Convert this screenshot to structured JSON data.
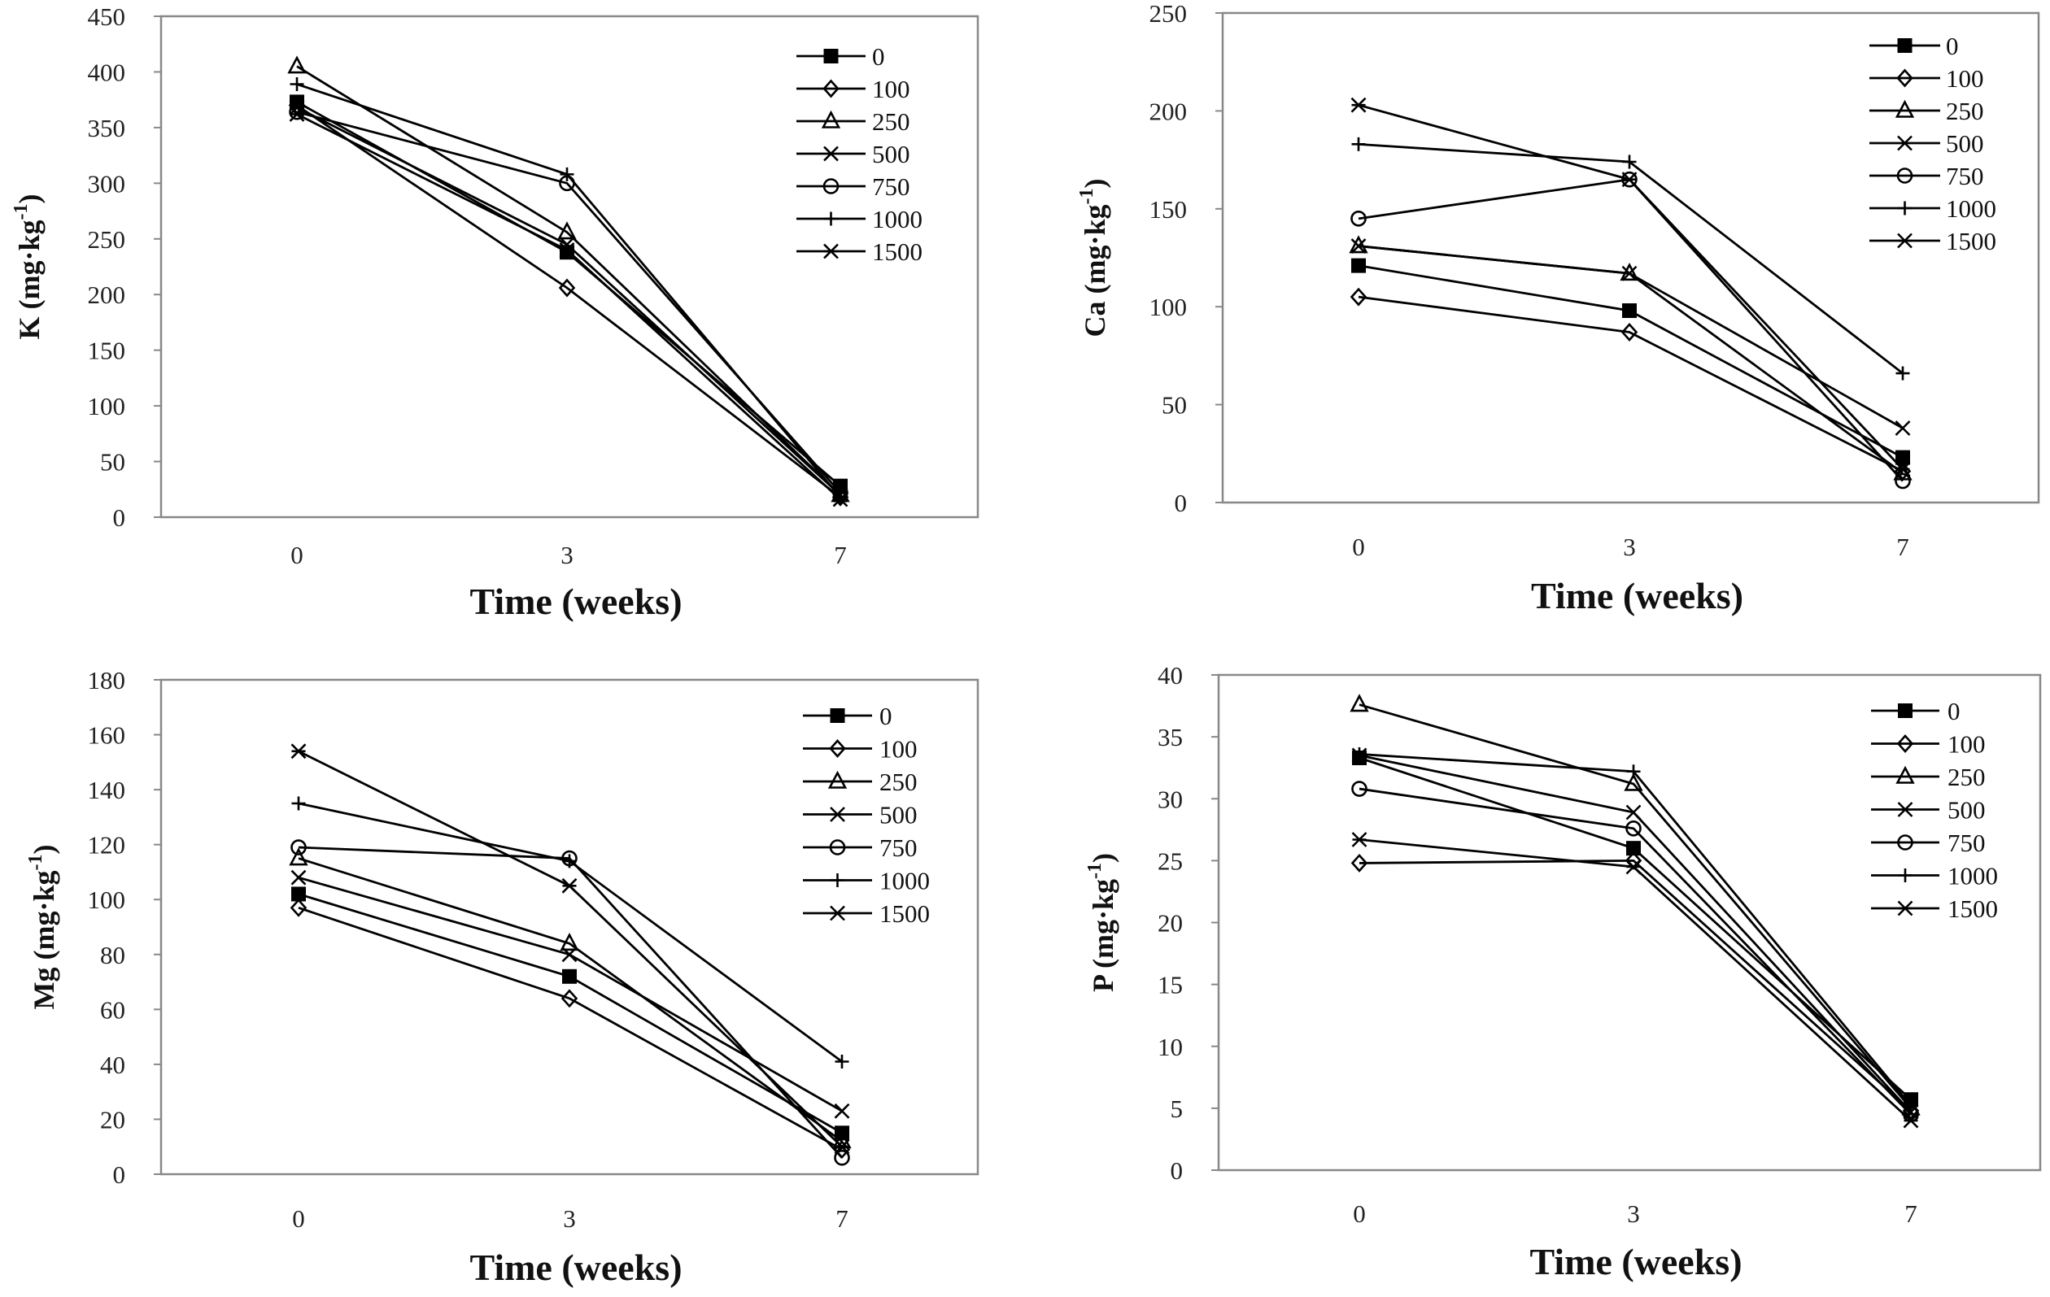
{
  "chart_data": [
    {
      "type": "line",
      "panel": "K",
      "ylabel_main": "K (mg·kg",
      "ylabel_sup": "-1",
      "ylabel_close": ")",
      "xlabel": "Time (weeks)",
      "x": [
        "0",
        "3",
        "7"
      ],
      "ylim": [
        0,
        450
      ],
      "yticks": [
        0,
        50,
        100,
        150,
        200,
        250,
        300,
        350,
        400,
        450
      ],
      "series": [
        {
          "name": "0",
          "marker": "square",
          "values": [
            373,
            238,
            28
          ]
        },
        {
          "name": "100",
          "marker": "diamond",
          "values": [
            370,
            206,
            18
          ]
        },
        {
          "name": "250",
          "marker": "triangle",
          "values": [
            405,
            256,
            20
          ]
        },
        {
          "name": "500",
          "marker": "x",
          "values": [
            368,
            245,
            20
          ]
        },
        {
          "name": "750",
          "marker": "circle",
          "values": [
            364,
            300,
            22
          ]
        },
        {
          "name": "1000",
          "marker": "plus",
          "values": [
            389,
            308,
            18
          ]
        },
        {
          "name": "1500",
          "marker": "asterisk",
          "values": [
            362,
            240,
            16
          ]
        }
      ]
    },
    {
      "type": "line",
      "panel": "Ca",
      "ylabel_main": "Ca (mg·kg",
      "ylabel_sup": "-1",
      "ylabel_close": ")",
      "xlabel": "Time (weeks)",
      "x": [
        "0",
        "3",
        "7"
      ],
      "ylim": [
        0,
        250
      ],
      "yticks": [
        0,
        50,
        100,
        150,
        200,
        250
      ],
      "series": [
        {
          "name": "0",
          "marker": "square",
          "values": [
            121,
            98,
            23
          ]
        },
        {
          "name": "100",
          "marker": "diamond",
          "values": [
            105,
            87,
            16
          ]
        },
        {
          "name": "250",
          "marker": "triangle",
          "values": [
            131,
            117,
            15
          ]
        },
        {
          "name": "500",
          "marker": "x",
          "values": [
            131,
            117,
            38
          ]
        },
        {
          "name": "750",
          "marker": "circle",
          "values": [
            145,
            165,
            11
          ]
        },
        {
          "name": "1000",
          "marker": "plus",
          "values": [
            183,
            174,
            66
          ]
        },
        {
          "name": "1500",
          "marker": "asterisk",
          "values": [
            203,
            165,
            17
          ]
        }
      ]
    },
    {
      "type": "line",
      "panel": "Mg",
      "ylabel_main": "Mg (mg·kg",
      "ylabel_sup": "-1",
      "ylabel_close": ")",
      "xlabel": "Time (weeks)",
      "x": [
        "0",
        "3",
        "7"
      ],
      "ylim": [
        0,
        180
      ],
      "yticks": [
        0,
        20,
        40,
        60,
        80,
        100,
        120,
        140,
        160,
        180
      ],
      "series": [
        {
          "name": "0",
          "marker": "square",
          "values": [
            102,
            72,
            15
          ]
        },
        {
          "name": "100",
          "marker": "diamond",
          "values": [
            97,
            64,
            9
          ]
        },
        {
          "name": "250",
          "marker": "triangle",
          "values": [
            115,
            84,
            12
          ]
        },
        {
          "name": "500",
          "marker": "x",
          "values": [
            108,
            80,
            23
          ]
        },
        {
          "name": "750",
          "marker": "circle",
          "values": [
            119,
            115,
            6
          ]
        },
        {
          "name": "1000",
          "marker": "plus",
          "values": [
            135,
            114,
            41
          ]
        },
        {
          "name": "1500",
          "marker": "asterisk",
          "values": [
            154,
            105,
            10
          ]
        }
      ]
    },
    {
      "type": "line",
      "panel": "P",
      "ylabel_main": "P (mg·kg",
      "ylabel_sup": "-1",
      "ylabel_close": ")",
      "xlabel": "Time (weeks)",
      "x": [
        "0",
        "3",
        "7"
      ],
      "ylim": [
        0,
        40
      ],
      "yticks": [
        0,
        5,
        10,
        15,
        20,
        25,
        30,
        35,
        40
      ],
      "series": [
        {
          "name": "0",
          "marker": "square",
          "values": [
            33.3,
            26.0,
            5.7
          ]
        },
        {
          "name": "100",
          "marker": "diamond",
          "values": [
            24.8,
            25.0,
            4.8
          ]
        },
        {
          "name": "250",
          "marker": "triangle",
          "values": [
            37.6,
            31.2,
            5.0
          ]
        },
        {
          "name": "500",
          "marker": "x",
          "values": [
            33.5,
            28.9,
            4.7
          ]
        },
        {
          "name": "750",
          "marker": "circle",
          "values": [
            30.8,
            27.6,
            4.5
          ]
        },
        {
          "name": "1000",
          "marker": "plus",
          "values": [
            33.6,
            32.2,
            5.2
          ]
        },
        {
          "name": "1500",
          "marker": "asterisk",
          "values": [
            26.7,
            24.5,
            4.0
          ]
        }
      ]
    }
  ]
}
